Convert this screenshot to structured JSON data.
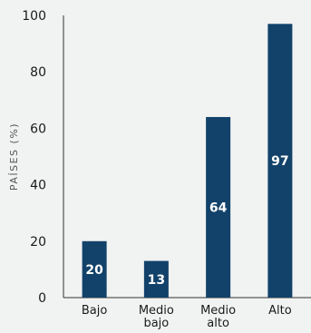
{
  "chart_data": {
    "type": "bar",
    "categories": [
      "Bajo",
      "Medio bajo",
      "Medio alto",
      "Alto"
    ],
    "category_lines": [
      [
        "Bajo"
      ],
      [
        "Medio",
        "bajo"
      ],
      [
        "Medio",
        "alto"
      ],
      [
        "Alto"
      ]
    ],
    "values": [
      20,
      13,
      64,
      97
    ],
    "data_labels": [
      "20",
      "13",
      "64",
      "97"
    ],
    "title": "",
    "xlabel": "",
    "ylabel": "PAÍSES (%)",
    "ylim": [
      0,
      100
    ],
    "yticks": [
      0,
      20,
      40,
      60,
      80,
      100
    ],
    "grid": false,
    "bar_color": "#12426a",
    "background_color": "#f1f2f2",
    "axis_color": "#333333"
  }
}
